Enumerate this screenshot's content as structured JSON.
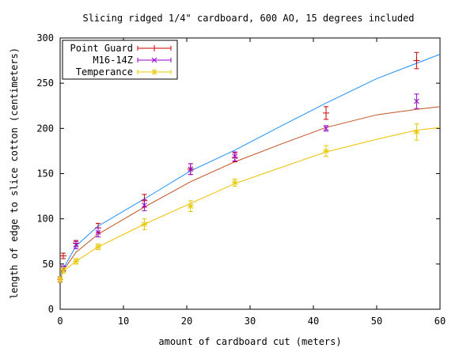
{
  "chart_data": {
    "type": "line",
    "title": "Slicing ridged 1/4\" cardboard, 600 AO, 15 degrees included",
    "xlabel": "amount of cardboard cut (meters)",
    "ylabel": "length of edge to slice cotton (centimeters)",
    "xlim": [
      0,
      60
    ],
    "ylim": [
      0,
      300
    ],
    "xticks": [
      "0",
      "10",
      "20",
      "30",
      "40",
      "50",
      "60"
    ],
    "yticks": [
      "0",
      "50",
      "100",
      "150",
      "200",
      "250",
      "300"
    ],
    "grid": false,
    "legend_position": "top-left",
    "series": [
      {
        "name": "Point Guard",
        "color": "#cc0000",
        "curve_color": "#c05020",
        "marker": "plus",
        "points": [
          {
            "x": 0,
            "y": 33,
            "err": 3
          },
          {
            "x": 0.5,
            "y": 59,
            "err": 3
          },
          {
            "x": 2.5,
            "y": 73,
            "err": 3
          },
          {
            "x": 6,
            "y": 90,
            "err": 5
          },
          {
            "x": 13.3,
            "y": 120,
            "err": 7
          },
          {
            "x": 20.6,
            "y": 155,
            "err": 6
          },
          {
            "x": 27.6,
            "y": 168,
            "err": 5
          },
          {
            "x": 42,
            "y": 217,
            "err": 7
          },
          {
            "x": 56.3,
            "y": 275,
            "err": 9
          }
        ],
        "fit": [
          [
            0,
            33
          ],
          [
            0.5,
            43
          ],
          [
            2.5,
            63
          ],
          [
            6,
            83
          ],
          [
            13.3,
            113
          ],
          [
            20.6,
            141
          ],
          [
            27.6,
            163
          ],
          [
            35,
            183
          ],
          [
            42,
            201
          ],
          [
            50,
            215
          ],
          [
            56.3,
            221
          ],
          [
            60,
            224
          ]
        ]
      },
      {
        "name": "M16-14Z",
        "color": "#9900cc",
        "curve_color": "#1e90ff",
        "marker": "cross",
        "points": [
          {
            "x": 0,
            "y": 33,
            "err": 3
          },
          {
            "x": 0.5,
            "y": 45,
            "err": 3
          },
          {
            "x": 2.5,
            "y": 71,
            "err": 4
          },
          {
            "x": 6,
            "y": 85,
            "err": 5
          },
          {
            "x": 13.3,
            "y": 115,
            "err": 6
          },
          {
            "x": 20.6,
            "y": 155,
            "err": 6
          },
          {
            "x": 27.6,
            "y": 169,
            "err": 5
          },
          {
            "x": 42,
            "y": 200,
            "err": 3
          },
          {
            "x": 56.3,
            "y": 230,
            "err": 8
          }
        ],
        "fit": [
          [
            0,
            33
          ],
          [
            0.5,
            45
          ],
          [
            2.5,
            70
          ],
          [
            6,
            92
          ],
          [
            13.3,
            122
          ],
          [
            20.6,
            153
          ],
          [
            27.6,
            176
          ],
          [
            35,
            203
          ],
          [
            42,
            228
          ],
          [
            50,
            255
          ],
          [
            56.3,
            272
          ],
          [
            60,
            282
          ]
        ]
      },
      {
        "name": "Temperance",
        "color": "#e6c800",
        "curve_color": "#f0c000",
        "marker": "star",
        "points": [
          {
            "x": 0,
            "y": 33,
            "err": 3
          },
          {
            "x": 0.5,
            "y": 43,
            "err": 3
          },
          {
            "x": 2.5,
            "y": 53,
            "err": 3
          },
          {
            "x": 6,
            "y": 69,
            "err": 3
          },
          {
            "x": 13.3,
            "y": 94,
            "err": 6
          },
          {
            "x": 20.6,
            "y": 114,
            "err": 6
          },
          {
            "x": 27.6,
            "y": 140,
            "err": 4
          },
          {
            "x": 42,
            "y": 175,
            "err": 6
          },
          {
            "x": 56.3,
            "y": 196,
            "err": 9
          }
        ],
        "fit": [
          [
            0,
            33
          ],
          [
            0.5,
            42
          ],
          [
            2.5,
            53
          ],
          [
            6,
            69
          ],
          [
            13.3,
            94
          ],
          [
            20.6,
            117
          ],
          [
            27.6,
            139
          ],
          [
            35,
            157
          ],
          [
            42,
            174
          ],
          [
            50,
            188
          ],
          [
            56.3,
            198
          ],
          [
            60,
            201
          ]
        ]
      }
    ]
  }
}
